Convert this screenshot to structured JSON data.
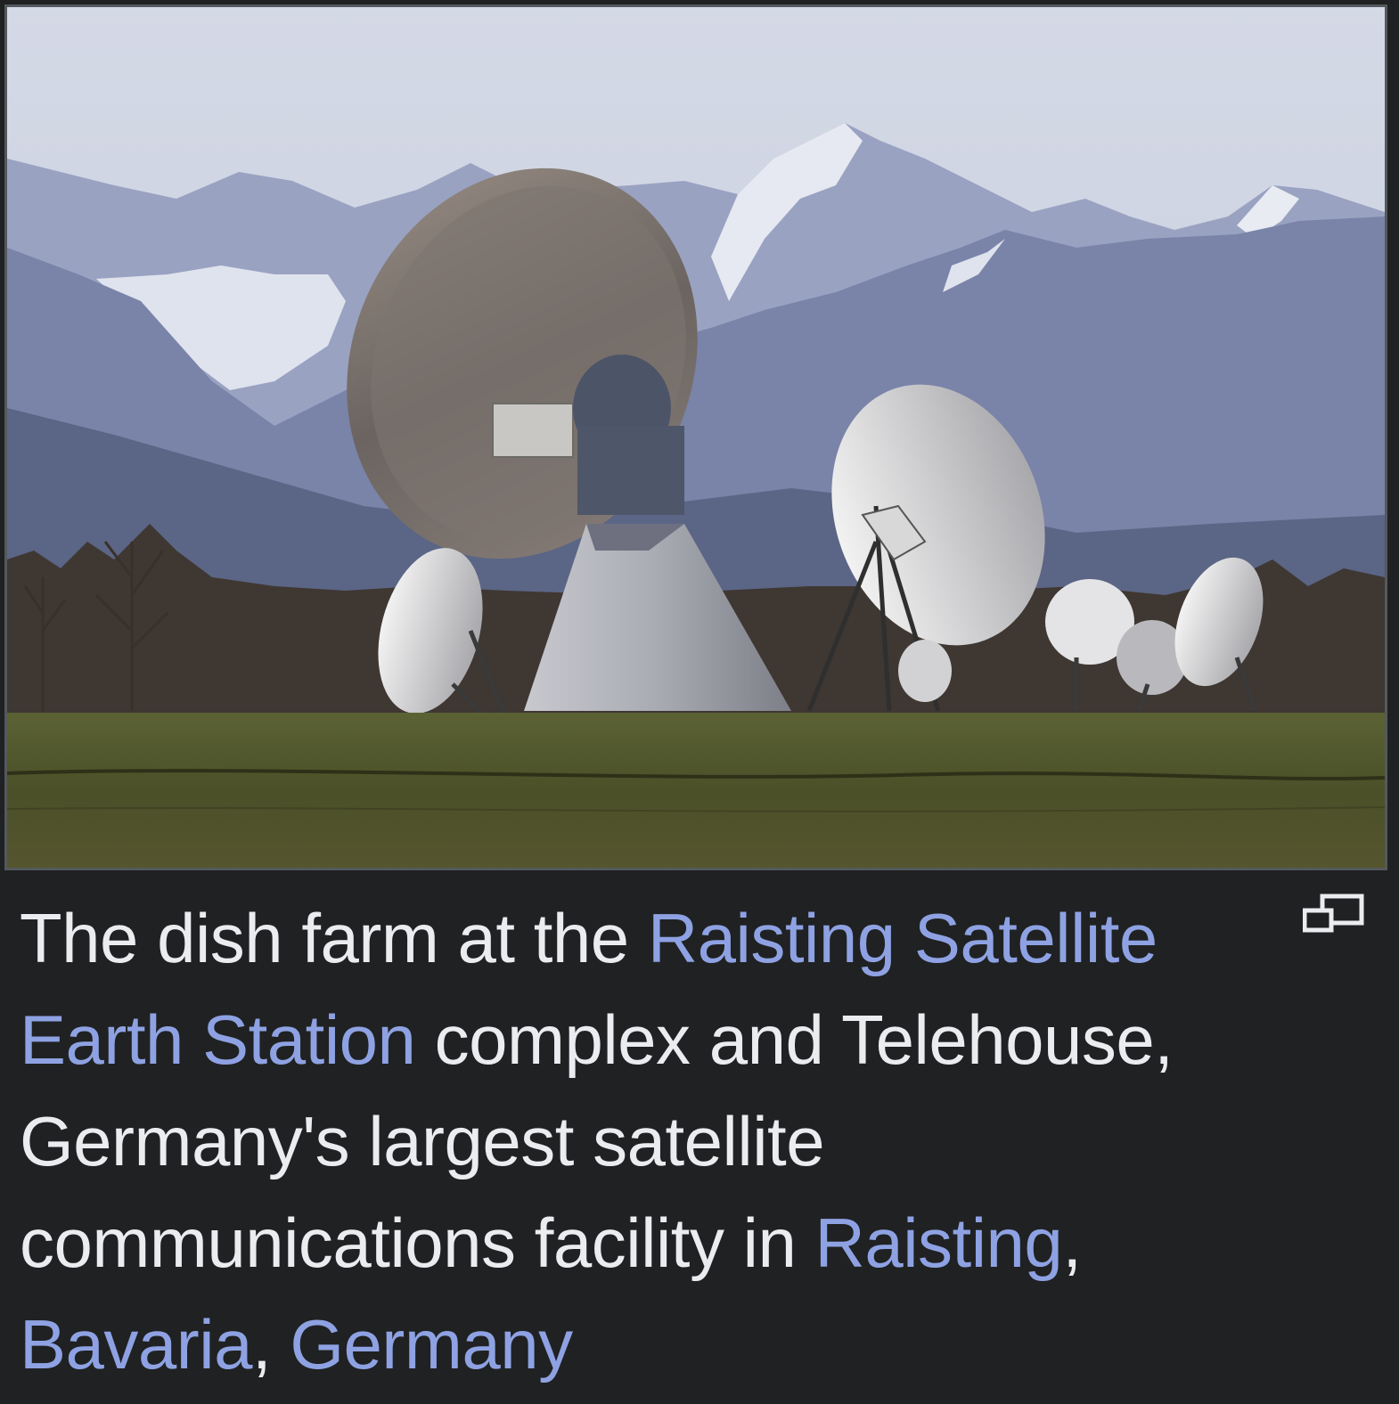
{
  "figure": {
    "image_alt": "Satellite dishes in a field in front of snow-capped mountains",
    "caption": {
      "text_1": "The dish farm at the ",
      "link_station": "Raisting Satellite Earth Station",
      "text_2": " complex and Telehouse, Germany's largest satellite communications facility in ",
      "link_raisting": "Raisting",
      "text_3": ", ",
      "link_bavaria": "Bavaria",
      "text_4": ", ",
      "link_germany": "Germany"
    },
    "magnify_icon": "magnify-clip-icon"
  },
  "colors": {
    "background": "#202122",
    "caption_text": "#eaecf0",
    "link": "#8ea2e3",
    "image_border": "#54595d"
  }
}
